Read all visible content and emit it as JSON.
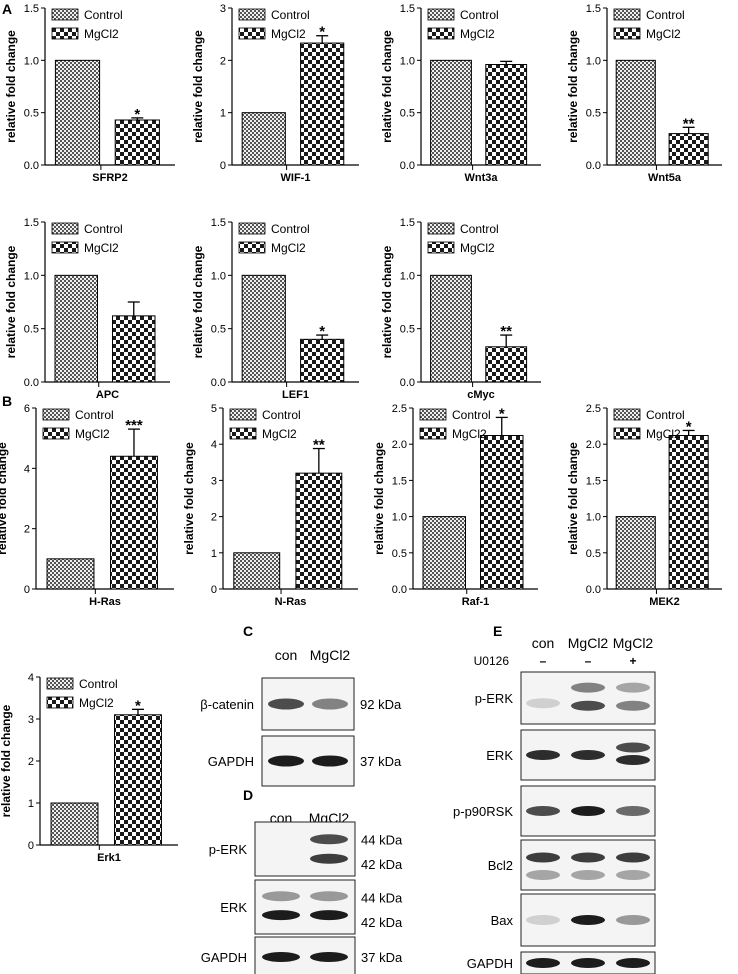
{
  "panels": {
    "A": "A",
    "B": "B",
    "C": "C",
    "D": "D",
    "E": "E"
  },
  "legend": {
    "control": "Control",
    "treatment": "MgCl2"
  },
  "ylabel": "relative fold change",
  "chart_data": [
    {
      "type": "bar",
      "panel": "A",
      "title": "",
      "xlabel": "SFRP2",
      "ylabel": "relative fold change",
      "categories": [
        "Control",
        "MgCl2"
      ],
      "values": [
        1.0,
        0.43
      ],
      "errors": [
        0,
        0.02
      ],
      "sig": [
        "",
        "*"
      ],
      "ylim": [
        0,
        1.5
      ],
      "ticks": [
        "0.0",
        "0.5",
        "1.0",
        "1.5"
      ],
      "legend": "top-left"
    },
    {
      "type": "bar",
      "panel": "A",
      "title": "",
      "xlabel": "WIF-1",
      "ylabel": "relative fold change",
      "categories": [
        "Control",
        "MgCl2"
      ],
      "values": [
        1.0,
        2.33
      ],
      "errors": [
        0,
        0.14
      ],
      "sig": [
        "",
        "*"
      ],
      "ylim": [
        0,
        3
      ],
      "ticks": [
        "0",
        "1",
        "2",
        "3"
      ],
      "legend": "top-left"
    },
    {
      "type": "bar",
      "panel": "A",
      "title": "",
      "xlabel": "Wnt3a",
      "ylabel": "relative fold change",
      "categories": [
        "Control",
        "MgCl2"
      ],
      "values": [
        1.0,
        0.96
      ],
      "errors": [
        0,
        0.03
      ],
      "sig": [
        "",
        ""
      ],
      "ylim": [
        0,
        1.5
      ],
      "ticks": [
        "0.0",
        "0.5",
        "1.0",
        "1.5"
      ],
      "legend": "top-left"
    },
    {
      "type": "bar",
      "panel": "A",
      "title": "",
      "xlabel": "Wnt5a",
      "ylabel": "relative fold change",
      "categories": [
        "Control",
        "MgCl2"
      ],
      "values": [
        1.0,
        0.3
      ],
      "errors": [
        0,
        0.06
      ],
      "sig": [
        "",
        "**"
      ],
      "ylim": [
        0,
        1.5
      ],
      "ticks": [
        "0.0",
        "0.5",
        "1.0",
        "1.5"
      ],
      "legend": "top-left"
    },
    {
      "type": "bar",
      "panel": "A",
      "title": "",
      "xlabel": "APC",
      "ylabel": "relative fold change",
      "categories": [
        "Control",
        "MgCl2"
      ],
      "values": [
        1.0,
        0.62
      ],
      "errors": [
        0,
        0.13
      ],
      "sig": [
        "",
        ""
      ],
      "ylim": [
        0,
        1.5
      ],
      "ticks": [
        "0.0",
        "0.5",
        "1.0",
        "1.5"
      ],
      "legend": "top-left"
    },
    {
      "type": "bar",
      "panel": "A",
      "title": "",
      "xlabel": "LEF1",
      "ylabel": "relative fold change",
      "categories": [
        "Control",
        "MgCl2"
      ],
      "values": [
        1.0,
        0.4
      ],
      "errors": [
        0,
        0.04
      ],
      "sig": [
        "",
        "*"
      ],
      "ylim": [
        0,
        1.5
      ],
      "ticks": [
        "0.0",
        "0.5",
        "1.0",
        "1.5"
      ],
      "legend": "top-left"
    },
    {
      "type": "bar",
      "panel": "A",
      "title": "",
      "xlabel": "cMyc",
      "ylabel": "relative fold change",
      "categories": [
        "Control",
        "MgCl2"
      ],
      "values": [
        1.0,
        0.33
      ],
      "errors": [
        0,
        0.11
      ],
      "sig": [
        "",
        "**"
      ],
      "ylim": [
        0,
        1.5
      ],
      "ticks": [
        "0.0",
        "0.5",
        "1.0",
        "1.5"
      ],
      "legend": "top-left"
    },
    {
      "type": "bar",
      "panel": "B",
      "title": "",
      "xlabel": "H-Ras",
      "ylabel": "relative fold change",
      "categories": [
        "Control",
        "MgCl2"
      ],
      "values": [
        1.0,
        4.4
      ],
      "errors": [
        0,
        0.9
      ],
      "sig": [
        "",
        "***"
      ],
      "ylim": [
        0,
        6
      ],
      "ticks": [
        "0",
        "2",
        "4",
        "6"
      ],
      "legend": "top-left"
    },
    {
      "type": "bar",
      "panel": "B",
      "title": "",
      "xlabel": "N-Ras",
      "ylabel": "relative fold change",
      "categories": [
        "Control",
        "MgCl2"
      ],
      "values": [
        1.0,
        3.2
      ],
      "errors": [
        0,
        0.68
      ],
      "sig": [
        "",
        "**"
      ],
      "ylim": [
        0,
        5
      ],
      "ticks": [
        "0",
        "1",
        "2",
        "3",
        "4",
        "5"
      ],
      "legend": "top-left"
    },
    {
      "type": "bar",
      "panel": "B",
      "title": "",
      "xlabel": "Raf-1",
      "ylabel": "relative fold change",
      "categories": [
        "Control",
        "MgCl2"
      ],
      "values": [
        1.0,
        2.12
      ],
      "errors": [
        0,
        0.25
      ],
      "sig": [
        "",
        "*"
      ],
      "ylim": [
        0,
        2.5
      ],
      "ticks": [
        "0.0",
        "0.5",
        "1.0",
        "1.5",
        "2.0",
        "2.5"
      ],
      "legend": "top-left"
    },
    {
      "type": "bar",
      "panel": "B",
      "title": "",
      "xlabel": "MEK2",
      "ylabel": "relative fold change",
      "categories": [
        "Control",
        "MgCl2"
      ],
      "values": [
        1.0,
        2.12
      ],
      "errors": [
        0,
        0.07
      ],
      "sig": [
        "",
        "*"
      ],
      "ylim": [
        0,
        2.5
      ],
      "ticks": [
        "0.0",
        "0.5",
        "1.0",
        "1.5",
        "2.0",
        "2.5"
      ],
      "legend": "top-left"
    },
    {
      "type": "bar",
      "panel": "B",
      "title": "",
      "xlabel": "Erk1",
      "ylabel": "relative fold change",
      "categories": [
        "Control",
        "MgCl2"
      ],
      "values": [
        1.0,
        3.1
      ],
      "errors": [
        0,
        0.13
      ],
      "sig": [
        "",
        "*"
      ],
      "ylim": [
        0,
        4
      ],
      "ticks": [
        "0",
        "1",
        "2",
        "3",
        "4"
      ],
      "legend": "top-left"
    }
  ],
  "blot_c": {
    "columns": [
      "con",
      "MgCl2"
    ],
    "rows": [
      {
        "label": "β-catenin",
        "mw": "92 kDa",
        "bands": [
          {
            "lane": 0,
            "i": 0.8
          },
          {
            "lane": 1,
            "i": 0.6
          }
        ]
      },
      {
        "label": "GAPDH",
        "mw": "37 kDa",
        "bands": [
          {
            "lane": 0,
            "i": 0.95
          },
          {
            "lane": 1,
            "i": 0.95
          }
        ]
      }
    ]
  },
  "blot_d": {
    "columns": [
      "con",
      "MgCl2"
    ],
    "rows": [
      {
        "label": "p-ERK",
        "mw": [
          "44 kDa",
          "42 kDa"
        ],
        "bands": [
          {
            "lane": 1,
            "i": 0.8,
            "off": -0.18
          },
          {
            "lane": 1,
            "i": 0.85,
            "off": 0.18
          }
        ]
      },
      {
        "label": "ERK",
        "mw": [
          "44 kDa",
          "42 kDa"
        ],
        "bands": [
          {
            "lane": 0,
            "i": 0.5,
            "off": -0.2
          },
          {
            "lane": 1,
            "i": 0.5,
            "off": -0.2
          },
          {
            "lane": 0,
            "i": 0.95,
            "off": 0.15
          },
          {
            "lane": 1,
            "i": 0.95,
            "off": 0.15
          }
        ]
      },
      {
        "label": "GAPDH",
        "mw": "37 kDa",
        "bands": [
          {
            "lane": 0,
            "i": 0.95
          },
          {
            "lane": 1,
            "i": 0.95
          }
        ]
      }
    ]
  },
  "blot_e": {
    "columns": [
      "con",
      "MgCl2",
      "MgCl2"
    ],
    "treatment_label": "U0126",
    "treatment_signs": [
      "–",
      "–",
      "+"
    ],
    "rows": [
      {
        "label": "p-ERK",
        "bands": [
          {
            "lane": 0,
            "i": 0.2,
            "off": 0.1
          },
          {
            "lane": 1,
            "i": 0.6,
            "off": -0.2
          },
          {
            "lane": 1,
            "i": 0.8,
            "off": 0.15
          },
          {
            "lane": 2,
            "i": 0.45,
            "off": -0.2
          },
          {
            "lane": 2,
            "i": 0.6,
            "off": 0.15
          }
        ]
      },
      {
        "label": "ERK",
        "bands": [
          {
            "lane": 0,
            "i": 0.9
          },
          {
            "lane": 1,
            "i": 0.9
          },
          {
            "lane": 2,
            "i": 0.8,
            "off": -0.15
          },
          {
            "lane": 2,
            "i": 0.9,
            "off": 0.1
          }
        ]
      },
      {
        "label": "p-p90RSK",
        "bands": [
          {
            "lane": 0,
            "i": 0.8
          },
          {
            "lane": 1,
            "i": 0.95
          },
          {
            "lane": 2,
            "i": 0.7
          }
        ]
      },
      {
        "label": "Bcl2",
        "bands": [
          {
            "lane": 0,
            "i": 0.85,
            "off": -0.15
          },
          {
            "lane": 1,
            "i": 0.85,
            "off": -0.15
          },
          {
            "lane": 2,
            "i": 0.85,
            "off": -0.15
          },
          {
            "lane": 0,
            "i": 0.45,
            "off": 0.2
          },
          {
            "lane": 1,
            "i": 0.45,
            "off": 0.2
          },
          {
            "lane": 2,
            "i": 0.45,
            "off": 0.2
          }
        ]
      },
      {
        "label": "Bax",
        "bands": [
          {
            "lane": 0,
            "i": 0.2
          },
          {
            "lane": 1,
            "i": 0.95
          },
          {
            "lane": 2,
            "i": 0.5
          }
        ]
      },
      {
        "label": "GAPDH",
        "bands": [
          {
            "lane": 0,
            "i": 0.95
          },
          {
            "lane": 1,
            "i": 0.95
          },
          {
            "lane": 2,
            "i": 0.95
          }
        ]
      }
    ]
  }
}
